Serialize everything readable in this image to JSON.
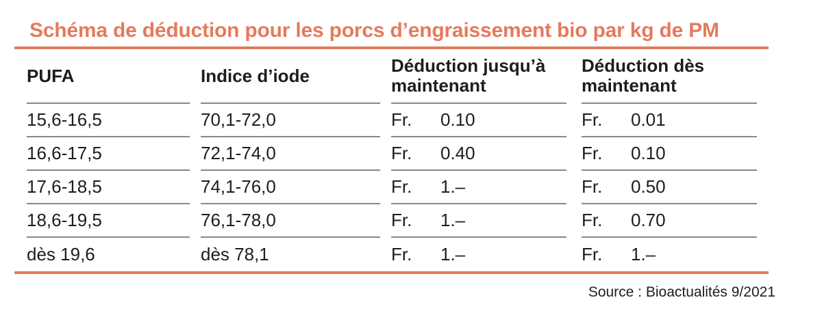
{
  "title": "Schéma de déduction pour les porcs d’engraissement bio par kg de PM",
  "colors": {
    "accent": "#E57A5C",
    "separator": "#878787",
    "text": "#1d1d1b"
  },
  "currency_label": "Fr.",
  "columns": [
    {
      "label": "PUFA"
    },
    {
      "label": "Indice d’iode"
    },
    {
      "label": "Déduction jusqu’à maintenant"
    },
    {
      "label": "Déduction dès maintenant"
    }
  ],
  "rows": [
    {
      "pufa": "15,6-16,5",
      "iodine_index": "70,1-72,0",
      "deduction_until_now": "0.10",
      "deduction_from_now": "0.01"
    },
    {
      "pufa": "16,6-17,5",
      "iodine_index": "72,1-74,0",
      "deduction_until_now": "0.40",
      "deduction_from_now": "0.10"
    },
    {
      "pufa": "17,6-18,5",
      "iodine_index": "74,1-76,0",
      "deduction_until_now": "1.–",
      "deduction_from_now": "0.50"
    },
    {
      "pufa": "18,6-19,5",
      "iodine_index": "76,1-78,0",
      "deduction_until_now": "1.–",
      "deduction_from_now": "0.70"
    },
    {
      "pufa": "dès 19,6",
      "iodine_index": "dès 78,1",
      "deduction_until_now": "1.–",
      "deduction_from_now": "1.–"
    }
  ],
  "source": "Source : Bioactualités 9/2021"
}
